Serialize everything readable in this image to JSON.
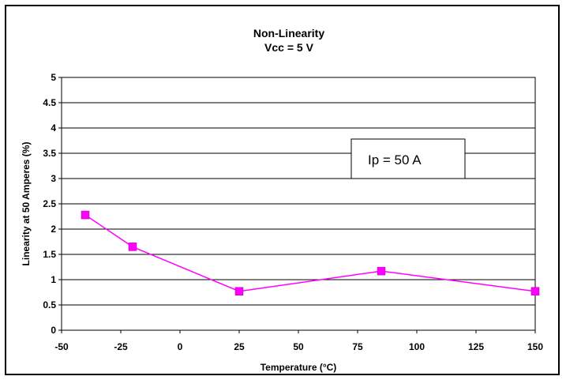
{
  "chart_data": {
    "type": "line",
    "title": "Non-Linearity",
    "subtitle": "Vcc = 5 V",
    "xlabel": "Temperature (°C)",
    "ylabel": "Linearity at 50 Amperes (%)",
    "xlim": [
      -50,
      150
    ],
    "ylim": [
      0,
      5
    ],
    "xticks": [
      -50,
      -25,
      0,
      25,
      50,
      75,
      100,
      125,
      150
    ],
    "xtick_labels": [
      "-50",
      "-25",
      "0",
      "25",
      "50",
      "75",
      "100",
      "125",
      "150"
    ],
    "yticks": [
      0,
      0.5,
      1,
      1.5,
      2,
      2.5,
      3,
      3.5,
      4,
      4.5,
      5
    ],
    "ytick_labels": [
      "0",
      "0.5",
      "1",
      "1.5",
      "2",
      "2.5",
      "3",
      "3.5",
      "4",
      "4.5",
      "5"
    ],
    "grid": true,
    "series": [
      {
        "x": [
          -40,
          -20,
          25,
          85,
          150
        ],
        "y": [
          2.28,
          1.65,
          0.77,
          1.17,
          0.77
        ],
        "color": "#ff00ff",
        "marker": "square"
      }
    ],
    "annotation": "Ip = 50 A"
  }
}
